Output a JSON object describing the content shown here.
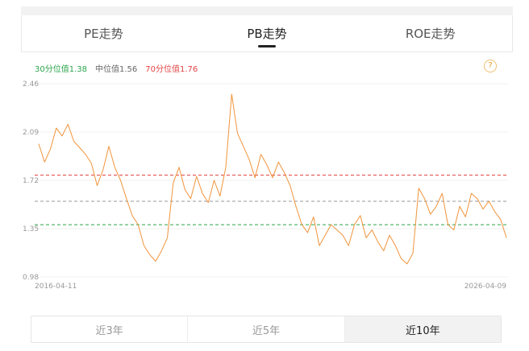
{
  "tabs": [
    {
      "label": "PE走势",
      "active": false
    },
    {
      "label": "PB走势",
      "active": true
    },
    {
      "label": "ROE走势",
      "active": false
    }
  ],
  "legend": {
    "p30": "30分位值1.38",
    "median": "中位值1.56",
    "p70": "70分位值1.76"
  },
  "help_icon": "?",
  "colors": {
    "line": "#f0943c",
    "p30": "#2aa44a",
    "median": "#999999",
    "p70": "#e24444"
  },
  "chart_data": {
    "type": "line",
    "x_start": "2016-04-11",
    "x_end": "2026-04-09",
    "y_ticks": [
      "2.46",
      "2.09",
      "1.72",
      "1.35",
      "0.98"
    ],
    "ylim": [
      0.98,
      2.46
    ],
    "reference_lines": [
      {
        "name": "30分位值",
        "value": 1.38
      },
      {
        "name": "中位值",
        "value": 1.56
      },
      {
        "name": "70分位值",
        "value": 1.76
      }
    ],
    "x": [
      "2016-04",
      "2016-05",
      "2016-07",
      "2016-08",
      "2016-10",
      "2016-11",
      "2017-01",
      "2017-02",
      "2017-04",
      "2017-05",
      "2017-07",
      "2017-08",
      "2017-10",
      "2017-11",
      "2018-01",
      "2018-02",
      "2018-04",
      "2018-05",
      "2018-07",
      "2018-08",
      "2018-10",
      "2018-11",
      "2019-01",
      "2019-02",
      "2019-04",
      "2019-05",
      "2019-07",
      "2019-08",
      "2019-10",
      "2019-11",
      "2020-01",
      "2020-02",
      "2020-04",
      "2020-05",
      "2020-07",
      "2020-08",
      "2020-10",
      "2020-11",
      "2021-01",
      "2021-02",
      "2021-04",
      "2021-05",
      "2021-07",
      "2021-08",
      "2021-10",
      "2021-11",
      "2022-01",
      "2022-02",
      "2022-04",
      "2022-05",
      "2022-07",
      "2022-08",
      "2022-10",
      "2022-11",
      "2023-01",
      "2023-02",
      "2023-04",
      "2023-05",
      "2023-07",
      "2023-08",
      "2023-10",
      "2023-11",
      "2024-01",
      "2024-02",
      "2024-04",
      "2024-05",
      "2024-07",
      "2024-08",
      "2024-10",
      "2024-11",
      "2025-01",
      "2025-02",
      "2025-04",
      "2025-05",
      "2025-07",
      "2025-08",
      "2025-10",
      "2025-11",
      "2026-01",
      "2026-02",
      "2026-04"
    ],
    "values": [
      2.0,
      1.86,
      1.96,
      2.12,
      2.06,
      2.15,
      2.02,
      1.97,
      1.92,
      1.85,
      1.68,
      1.8,
      1.98,
      1.82,
      1.72,
      1.58,
      1.45,
      1.38,
      1.22,
      1.15,
      1.1,
      1.18,
      1.28,
      1.7,
      1.82,
      1.65,
      1.58,
      1.75,
      1.62,
      1.55,
      1.72,
      1.6,
      1.82,
      2.38,
      2.08,
      1.98,
      1.88,
      1.74,
      1.92,
      1.84,
      1.74,
      1.86,
      1.78,
      1.68,
      1.52,
      1.38,
      1.32,
      1.44,
      1.22,
      1.3,
      1.38,
      1.34,
      1.3,
      1.22,
      1.38,
      1.45,
      1.28,
      1.34,
      1.25,
      1.18,
      1.3,
      1.22,
      1.12,
      1.08,
      1.16,
      1.66,
      1.58,
      1.46,
      1.52,
      1.62,
      1.38,
      1.34,
      1.52,
      1.44,
      1.62,
      1.58,
      1.5,
      1.56,
      1.48,
      1.42,
      1.28
    ]
  },
  "ranges": [
    {
      "label": "近3年",
      "active": false
    },
    {
      "label": "近5年",
      "active": false
    },
    {
      "label": "近10年",
      "active": true
    }
  ]
}
